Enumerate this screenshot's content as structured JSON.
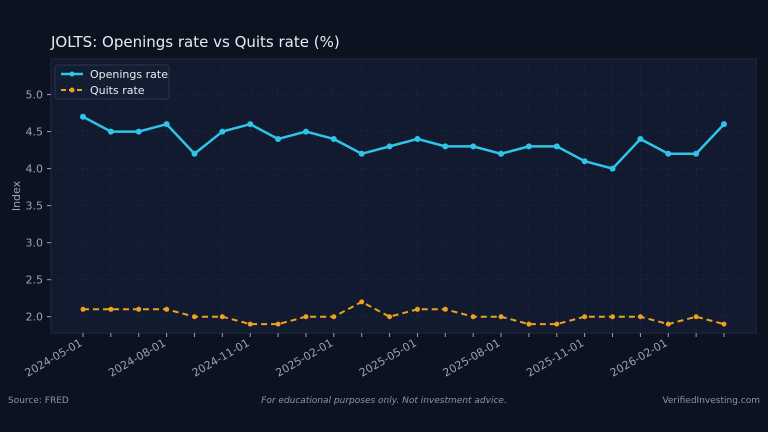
{
  "colors": {
    "background": "#0c1220",
    "plot_background": "#111a2e",
    "openings": "#2ec5e8",
    "quits": "#f0a020",
    "text": "#e8ecf3",
    "muted": "#9aa3b2"
  },
  "footer": {
    "source": "Source: FRED",
    "disclaimer": "For educational purposes only. Not investment advice.",
    "brand": "VerifiedInvesting.com"
  },
  "chart_data": {
    "type": "line",
    "title": "JOLTS: Openings rate vs Quits rate (%)",
    "xlabel": "",
    "ylabel": "Index",
    "ylim": [
      1.78,
      5.48
    ],
    "yticks": [
      2.0,
      2.5,
      3.0,
      3.5,
      4.0,
      4.5,
      5.0
    ],
    "x": [
      "2024-05-01",
      "2024-06-01",
      "2024-07-01",
      "2024-08-01",
      "2024-09-01",
      "2024-10-01",
      "2024-11-01",
      "2024-12-01",
      "2025-01-01",
      "2025-02-01",
      "2025-03-01",
      "2025-04-01",
      "2025-05-01",
      "2025-06-01",
      "2025-07-01",
      "2025-08-01",
      "2025-09-01",
      "2025-10-01",
      "2025-11-01",
      "2025-12-01",
      "2026-01-01",
      "2026-02-01",
      "2026-03-01",
      "2026-04-01"
    ],
    "xticks": [
      "2024-05-01",
      "2024-08-01",
      "2024-11-01",
      "2025-02-01",
      "2025-05-01",
      "2025-08-01",
      "2025-11-01",
      "2026-02-01"
    ],
    "grid": true,
    "legend_position": "top-left",
    "series": [
      {
        "name": "Openings rate",
        "style": "solid",
        "values": [
          4.7,
          4.5,
          4.5,
          4.6,
          4.2,
          4.5,
          4.6,
          4.4,
          4.5,
          4.4,
          4.2,
          4.3,
          4.4,
          4.3,
          4.3,
          4.2,
          4.3,
          4.3,
          4.1,
          4.0,
          4.4,
          4.2,
          4.2,
          4.6
        ]
      },
      {
        "name": "Quits rate",
        "style": "dashed",
        "values": [
          2.1,
          2.1,
          2.1,
          2.1,
          2.0,
          2.0,
          1.9,
          1.9,
          2.0,
          2.0,
          2.2,
          2.0,
          2.1,
          2.1,
          2.0,
          2.0,
          1.9,
          1.9,
          2.0,
          2.0,
          2.0,
          1.9,
          2.0,
          1.9
        ]
      }
    ]
  }
}
